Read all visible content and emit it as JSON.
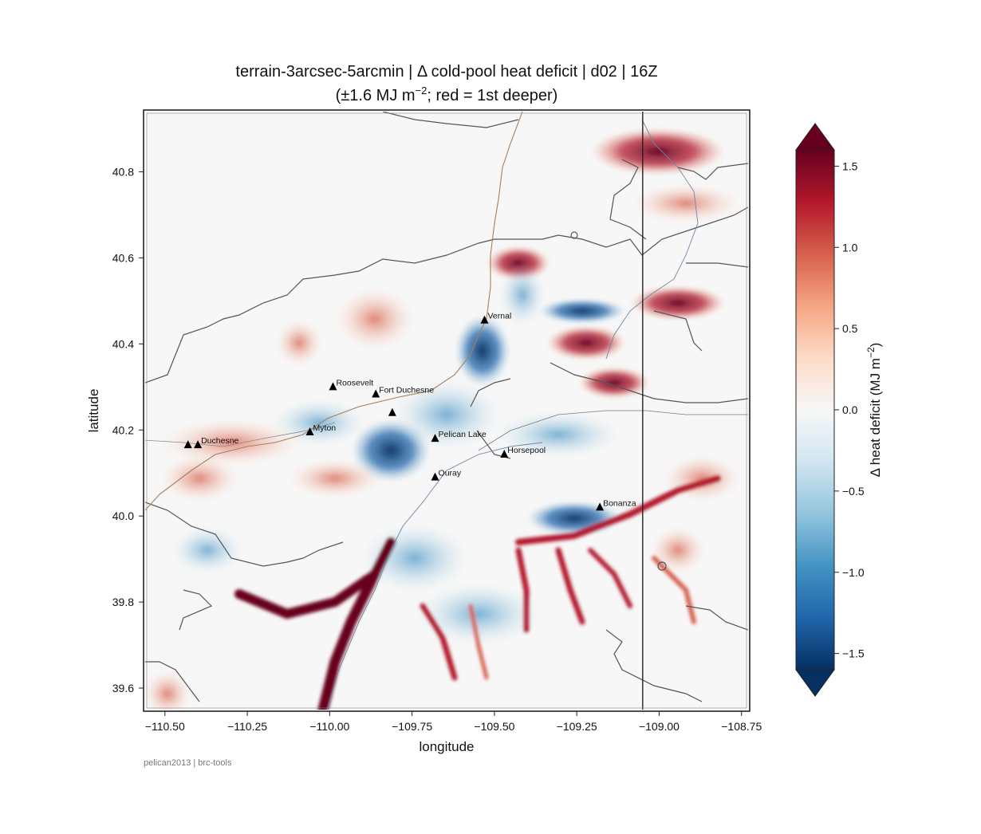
{
  "title_line1": "terrain-3arcsec-5arcmin | Δ cold-pool heat deficit | d02 | 16Z",
  "title_line2_pre": "(±1.6 MJ m",
  "title_line2_sup": "−2",
  "title_line2_post": "; red = 1st deeper)",
  "xlabel": "longitude",
  "ylabel": "latitude",
  "colorbar": {
    "label_pre": "Δ heat deficit (MJ m",
    "label_sup": "−2",
    "label_post": ")",
    "vmin": -1.6,
    "vmax": 1.6,
    "extend": "both",
    "colormap": "RdBu_r",
    "stops": [
      "#053061",
      "#2166ac",
      "#4393c3",
      "#92c5de",
      "#d1e5f0",
      "#f7f7f7",
      "#fddbc7",
      "#f4a582",
      "#d6604d",
      "#b2182b",
      "#67001f"
    ],
    "ticks": [
      {
        "value": 1.5,
        "label": "1.5"
      },
      {
        "value": 1.0,
        "label": "1.0"
      },
      {
        "value": 0.5,
        "label": "0.5"
      },
      {
        "value": 0.0,
        "label": "0.0"
      },
      {
        "value": -0.5,
        "label": "−0.5"
      },
      {
        "value": -1.0,
        "label": "−1.0"
      },
      {
        "value": -1.5,
        "label": "−1.5"
      }
    ]
  },
  "map": {
    "lon_range": [
      -110.56,
      -108.73
    ],
    "lat_range": [
      39.55,
      40.94
    ],
    "x_ticks": [
      {
        "value": -110.5,
        "label": "−110.50"
      },
      {
        "value": -110.25,
        "label": "−110.25"
      },
      {
        "value": -110.0,
        "label": "−110.00"
      },
      {
        "value": -109.75,
        "label": "−109.75"
      },
      {
        "value": -109.5,
        "label": "−109.50"
      },
      {
        "value": -109.25,
        "label": "−109.25"
      },
      {
        "value": -109.0,
        "label": "−109.00"
      },
      {
        "value": -108.75,
        "label": "−108.75"
      }
    ],
    "y_ticks": [
      {
        "value": 40.8,
        "label": "40.8"
      },
      {
        "value": 40.6,
        "label": "40.6"
      },
      {
        "value": 40.4,
        "label": "40.4"
      },
      {
        "value": 40.2,
        "label": "40.2"
      },
      {
        "value": 40.0,
        "label": "40.0"
      },
      {
        "value": 39.8,
        "label": "39.8"
      },
      {
        "value": 39.6,
        "label": "39.6"
      }
    ],
    "state_border_lon": -109.05,
    "stations": [
      {
        "name": "Duchesne",
        "lon": -110.4,
        "lat": 40.165
      },
      {
        "name": "",
        "lon": -110.43,
        "lat": 40.165
      },
      {
        "name": "Myton",
        "lon": -110.06,
        "lat": 40.195
      },
      {
        "name": "Roosevelt",
        "lon": -109.99,
        "lat": 40.3
      },
      {
        "name": "Fort Duchesne",
        "lon": -109.86,
        "lat": 40.283
      },
      {
        "name": "",
        "lon": -109.81,
        "lat": 40.24
      },
      {
        "name": "Pelican Lake",
        "lon": -109.68,
        "lat": 40.18
      },
      {
        "name": "Ouray",
        "lon": -109.68,
        "lat": 40.09
      },
      {
        "name": "Vernal",
        "lon": -109.53,
        "lat": 40.455
      },
      {
        "name": "Horsepool",
        "lon": -109.47,
        "lat": 40.143
      },
      {
        "name": "Bonanza",
        "lon": -109.18,
        "lat": 40.02
      }
    ]
  },
  "credit": "pelican2013 | brc-tools"
}
